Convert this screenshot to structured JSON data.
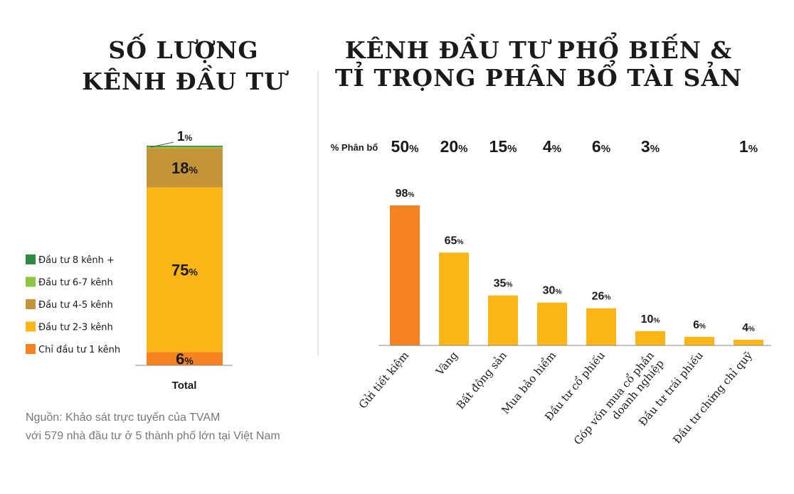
{
  "titles": {
    "left": [
      "SỐ LƯỢNG",
      "KÊNH ĐẦU TƯ"
    ],
    "right": [
      "KÊNH ĐẦU TƯ PHỔ BIẾN &",
      "TỈ TRỌNG PHÂN BỔ TÀI SẢN"
    ]
  },
  "source": [
    "Nguồn: Khảo sát trực tuyến của TVAM",
    "với 579 nhà đầu tư ở 5 thành phố lớn tại Việt Nam"
  ],
  "chart_data": [
    {
      "type": "bar",
      "stacked": true,
      "categories": [
        "Total"
      ],
      "series": [
        {
          "name": "Chỉ đầu tư 1 kênh",
          "values": [
            6
          ],
          "color": "#f58220",
          "label": "6"
        },
        {
          "name": "Đầu tư 2-3 kênh",
          "values": [
            75
          ],
          "color": "#fbb616",
          "label": "75"
        },
        {
          "name": "Đầu tư 4-5 kênh",
          "values": [
            18
          ],
          "color": "#c69438",
          "label": "18"
        },
        {
          "name": "Đầu tư 6-7 kênh",
          "values": [
            0.5
          ],
          "color": "#8dc63f",
          "label": "1"
        },
        {
          "name": "Đầu tư 8 kênh +",
          "values": [
            0.5
          ],
          "color": "#2e8b3e",
          "label": ""
        }
      ],
      "ylim": [
        0,
        100
      ],
      "legend_position": "left"
    },
    {
      "type": "bar",
      "categories": [
        "Gửi tiết kiệm",
        "Vàng",
        "Bất động sản",
        "Mua bảo hiểm",
        "Đầu tư cổ phiếu",
        "Góp vốn mua cổ phần doanh nghiệp",
        "Đầu tư trái phiếu",
        "Đầu tư chứng chỉ quỹ"
      ],
      "category_lines": [
        [
          "Gửi tiết kiệm"
        ],
        [
          "Vàng"
        ],
        [
          "Bất động sản"
        ],
        [
          "Mua bảo hiểm"
        ],
        [
          "Đầu tư cổ phiếu"
        ],
        [
          "Góp vốn mua cổ phần",
          "doanh nghiệp"
        ],
        [
          "Đầu tư trái phiếu"
        ],
        [
          "Đầu tư chứng chỉ quỹ"
        ]
      ],
      "values": [
        98,
        65,
        35,
        30,
        26,
        10,
        6,
        4
      ],
      "value_labels": [
        "98",
        "65",
        "35",
        "30",
        "26",
        "10",
        "6",
        "4"
      ],
      "allocation_label": "% Phân bổ",
      "allocation": [
        "50",
        "20",
        "15",
        "4",
        "6",
        "3",
        "",
        "1"
      ],
      "highlight_color": "#f58220",
      "bar_color": "#fbb616",
      "ylim": [
        0,
        100
      ]
    }
  ],
  "percent_sign": "%"
}
